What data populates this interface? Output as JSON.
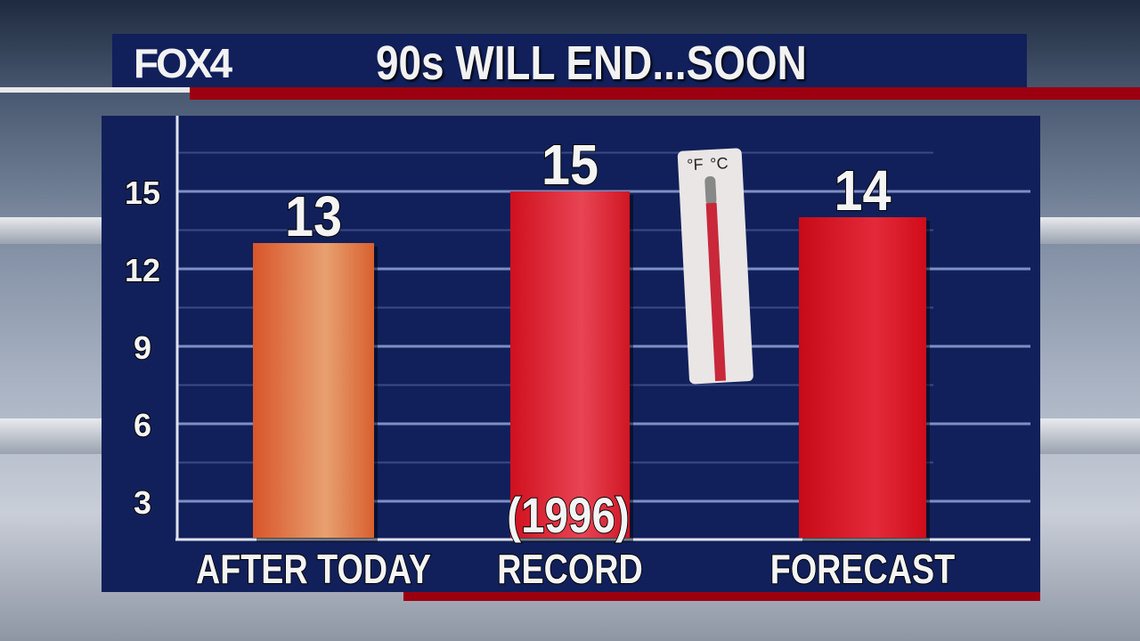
{
  "header": {
    "logo": "FOX4",
    "title": "90s WILL END...SOON"
  },
  "colors": {
    "navy": "#11205a",
    "red_stripe": "#9c0010",
    "after_today_bar": "#e36a3a",
    "record_bar": "#e0202e",
    "forecast_bar": "#e0101e"
  },
  "chart_data": {
    "type": "bar",
    "categories": [
      "AFTER TODAY",
      "RECORD",
      "FORECAST"
    ],
    "values": [
      13,
      15,
      14
    ],
    "data_labels": [
      "13",
      "15",
      "14"
    ],
    "annotations": [
      "(1996)"
    ],
    "yticks": [
      "3",
      "6",
      "9",
      "12",
      "15"
    ],
    "ylim": [
      0,
      17
    ],
    "grid": true
  },
  "decoration": {
    "thermometer_icon": "thermometer-icon",
    "thermometer_units": [
      "°F",
      "°C"
    ]
  }
}
